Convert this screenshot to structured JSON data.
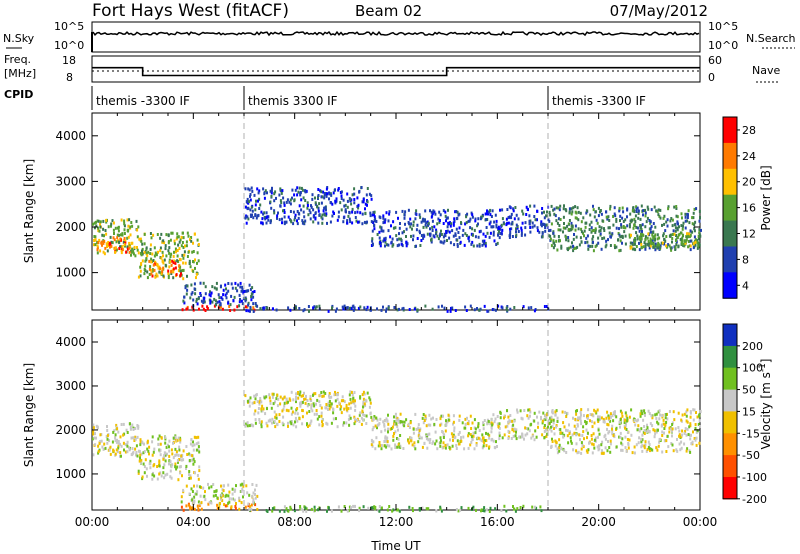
{
  "header": {
    "site": "Fort Hays West (fitACF)",
    "beam": "Beam 02",
    "date": "07/May/2012"
  },
  "status_panels": {
    "nsky_label": "N.Sky",
    "nsky_ticks": [
      "10^5",
      "10^0"
    ],
    "nsearch_label": "N.Search",
    "nsearch_ticks": [
      "10^5",
      "10^0"
    ],
    "freq_label": "Freq.",
    "freq_unit": "[MHz]",
    "freq_ticks": [
      "18",
      "8"
    ],
    "nave_label": "Nave",
    "nave_ticks": [
      "60",
      "0"
    ],
    "cpid_label": "CPID",
    "freq_series_hours": [
      0,
      2,
      2,
      14,
      14,
      24
    ],
    "freq_series_mhz": [
      13.5,
      13.5,
      10.5,
      10.5,
      13.5,
      13.5
    ],
    "cpid_segments": [
      {
        "start_hour": 0,
        "label": "themis -3300 IF"
      },
      {
        "start_hour": 6,
        "label": "themis 3300 IF"
      },
      {
        "start_hour": 18,
        "label": "themis -3300 IF"
      }
    ]
  },
  "chart_data": [
    {
      "type": "heatmap",
      "ylabel": "Slant Range [km]",
      "xlabel": "Time UT",
      "xlim": [
        0,
        24
      ],
      "ylim": [
        180,
        4500
      ],
      "xticks": [
        "00:00",
        "04:00",
        "08:00",
        "12:00",
        "16:00",
        "20:00",
        "00:00"
      ],
      "yticks": [
        1000,
        2000,
        3000,
        4000
      ],
      "colorbar_label": "Power [dB]",
      "colorbar_ticks": [
        "28",
        "24",
        "20",
        "16",
        "12",
        "8",
        "4"
      ],
      "colorbar_colors": [
        "#0000ff",
        "#2040b0",
        "#3a7850",
        "#58a030",
        "#ffc000",
        "#ff7a00",
        "#ff0000"
      ],
      "cpid_boundaries_hours": [
        6,
        18
      ],
      "echo_regions": [
        {
          "t0": 0.0,
          "t1": 1.8,
          "r0": 1400,
          "r1": 2200,
          "level": 3
        },
        {
          "t0": 0.1,
          "t1": 1.5,
          "r0": 1450,
          "r1": 1800,
          "level": 5
        },
        {
          "t0": 1.8,
          "t1": 4.2,
          "r0": 900,
          "r1": 1900,
          "level": 3
        },
        {
          "t0": 2.2,
          "t1": 3.5,
          "r0": 950,
          "r1": 1300,
          "level": 5
        },
        {
          "t0": 3.5,
          "t1": 6.5,
          "r0": 200,
          "r1": 300,
          "level": 6
        },
        {
          "t0": 3.5,
          "t1": 6.5,
          "r0": 300,
          "r1": 800,
          "level": 1
        },
        {
          "t0": 6.0,
          "t1": 11.0,
          "r0": 2100,
          "r1": 2900,
          "level": 1
        },
        {
          "t0": 11.0,
          "t1": 16.0,
          "r0": 1600,
          "r1": 2400,
          "level": 1
        },
        {
          "t0": 16.0,
          "t1": 18.0,
          "r0": 1800,
          "r1": 2500,
          "level": 1
        },
        {
          "t0": 18.0,
          "t1": 24.0,
          "r0": 1500,
          "r1": 2500,
          "level": 2
        },
        {
          "t0": 21.0,
          "t1": 24.0,
          "r0": 1550,
          "r1": 1900,
          "level": 3
        },
        {
          "t0": 6.0,
          "t1": 18.0,
          "r0": 180,
          "r1": 300,
          "level": 1
        }
      ]
    },
    {
      "type": "heatmap",
      "ylabel": "Slant Range [km]",
      "xlabel": "Time UT",
      "xlim": [
        0,
        24
      ],
      "ylim": [
        180,
        4500
      ],
      "xticks": [
        "00:00",
        "04:00",
        "08:00",
        "12:00",
        "16:00",
        "20:00",
        "00:00"
      ],
      "yticks": [
        1000,
        2000,
        3000,
        4000
      ],
      "colorbar_label": "Velocity [m s^-1]",
      "colorbar_ticks": [
        "200",
        "100",
        "50",
        "15",
        "-15",
        "-50",
        "-100",
        "-200"
      ],
      "colorbar_colors": [
        "#ff0000",
        "#ff5000",
        "#ff9000",
        "#f0c000",
        "#c8c8c8",
        "#70c020",
        "#309040",
        "#1030c0"
      ],
      "cpid_boundaries_hours": [
        6,
        18
      ],
      "echo_regions": [
        {
          "t0": 0.0,
          "t1": 1.8,
          "r0": 1400,
          "r1": 2200,
          "level": 4
        },
        {
          "t0": 1.8,
          "t1": 4.2,
          "r0": 900,
          "r1": 1900,
          "level": 4
        },
        {
          "t0": 3.5,
          "t1": 6.5,
          "r0": 200,
          "r1": 350,
          "level": 2
        },
        {
          "t0": 3.5,
          "t1": 6.5,
          "r0": 350,
          "r1": 800,
          "level": 4
        },
        {
          "t0": 6.0,
          "t1": 11.0,
          "r0": 2100,
          "r1": 2900,
          "level": 4
        },
        {
          "t0": 11.0,
          "t1": 16.0,
          "r0": 1600,
          "r1": 2400,
          "level": 4
        },
        {
          "t0": 16.0,
          "t1": 18.0,
          "r0": 1800,
          "r1": 2500,
          "level": 4
        },
        {
          "t0": 18.0,
          "t1": 24.0,
          "r0": 1500,
          "r1": 2500,
          "level": 4
        },
        {
          "t0": 6.0,
          "t1": 18.0,
          "r0": 180,
          "r1": 300,
          "level": 5
        }
      ]
    }
  ]
}
